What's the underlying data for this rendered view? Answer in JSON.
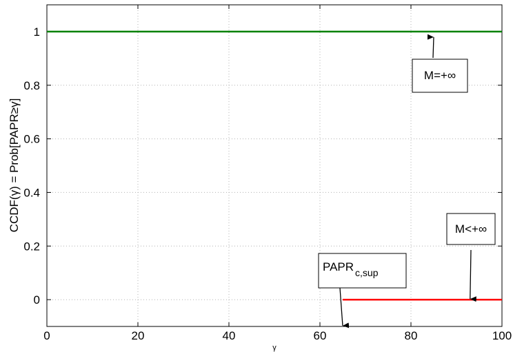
{
  "chart_data": {
    "type": "line",
    "title": "",
    "xlabel": "γ",
    "ylabel": "CCDF(γ) = Prob[PAPR≥γ]",
    "xlim": [
      0,
      100
    ],
    "ylim": [
      -0.1,
      1.1
    ],
    "xticks": [
      0,
      20,
      40,
      60,
      80,
      100
    ],
    "yticks": [
      0,
      0.2,
      0.4,
      0.6,
      0.8,
      1
    ],
    "ytick_labels": [
      "0",
      "0.2",
      "0.4",
      "0.6",
      "0.8",
      "1"
    ],
    "grid": true,
    "series": [
      {
        "color": "#008000",
        "x": [
          0,
          100
        ],
        "y": [
          1,
          1
        ]
      },
      {
        "color": "#ff0000",
        "x": [
          65,
          100
        ],
        "y": [
          0,
          0
        ]
      }
    ],
    "annotations": [
      {
        "text": "M=+∞",
        "arrow_to": {
          "x": 85,
          "y": 1
        }
      },
      {
        "text": "M<+∞",
        "arrow_to": {
          "x": 93,
          "y": 0
        }
      },
      {
        "text": "PAPR",
        "subscript": "c,sup",
        "arrow_to": {
          "x": 65,
          "y": -0.1
        }
      }
    ]
  }
}
